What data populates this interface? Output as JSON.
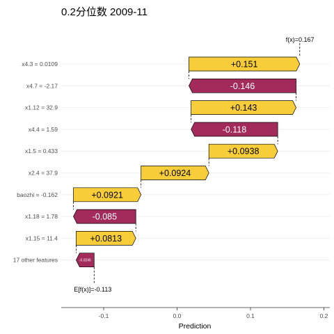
{
  "chart_data": {
    "type": "waterfall",
    "title": "0.2分位数 2009-11",
    "xlabel": "Prediction",
    "xlim": [
      -0.165,
      0.205
    ],
    "x_ticks": [
      "-0.1",
      "0.0",
      "0.1",
      "0.2"
    ],
    "x_tick_values": [
      -0.1,
      0.0,
      0.1,
      0.2
    ],
    "base_value": -0.113,
    "base_label": "E[f(x)]=-0.113",
    "final_value": 0.167,
    "final_label": "f(x)=0.167",
    "features": [
      {
        "label": "x4.3 = 0.0109",
        "value": 0.151,
        "value_label": "+0.151"
      },
      {
        "label": "x4.7 = -2.17",
        "value": -0.146,
        "value_label": "-0.146"
      },
      {
        "label": "x1.12 = 32.9",
        "value": 0.143,
        "value_label": "+0.143"
      },
      {
        "label": "x4.4 = 1.59",
        "value": -0.118,
        "value_label": "-0.118"
      },
      {
        "label": "x1.5 = 0.433",
        "value": 0.0938,
        "value_label": "+0.0938"
      },
      {
        "label": "x2.4 = 37.9",
        "value": 0.0924,
        "value_label": "+0.0924"
      },
      {
        "label": "baozhi = -0.162",
        "value": 0.0921,
        "value_label": "+0.0921"
      },
      {
        "label": "x1.18 = 1.78",
        "value": -0.085,
        "value_label": "-0.085"
      },
      {
        "label": "x1.15 = 11.4",
        "value": 0.0813,
        "value_label": "+0.0813"
      },
      {
        "label": "17 other features",
        "value": -0.0245,
        "value_label": "-0.0245"
      }
    ],
    "colors": {
      "positive": "#f7cd3a",
      "negative": "#a22b5c",
      "outline": "#000000",
      "positive_text": "#000000",
      "negative_text": "#ffffff"
    },
    "grid": true
  }
}
